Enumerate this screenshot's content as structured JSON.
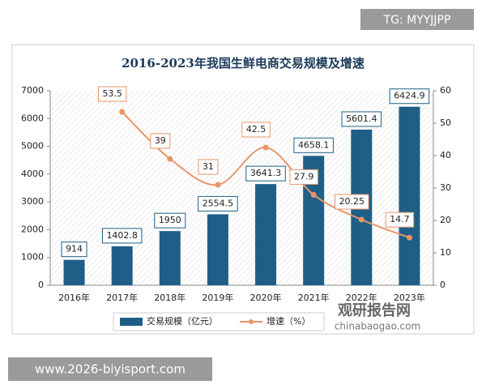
{
  "chart_data": {
    "type": "bar",
    "title": "2016-2023年我国生鲜电商交易规模及增速",
    "categories": [
      "2016年",
      "2017年",
      "2018年",
      "2019年",
      "2020年",
      "2021年",
      "2022年",
      "2023年"
    ],
    "series": [
      {
        "name": "交易规模（亿元）",
        "color": "#1f5f87",
        "type": "bar",
        "axis": "y",
        "values": [
          914,
          1402.8,
          1950,
          2554.5,
          3641.3,
          4658.1,
          5601.4,
          6424.9
        ]
      },
      {
        "name": "增速（%）",
        "color": "#e8956a",
        "type": "line",
        "axis": "y2",
        "values": [
          null,
          53.5,
          39,
          31,
          42.5,
          27.9,
          20.25,
          14.7
        ]
      }
    ],
    "ylim": [
      0,
      7000
    ],
    "yticks": [
      0,
      1000,
      2000,
      3000,
      4000,
      5000,
      6000,
      7000
    ],
    "y2lim": [
      0,
      60
    ],
    "y2ticks": [
      0,
      10,
      20,
      30,
      40,
      50,
      60
    ],
    "legend": "bottom"
  },
  "watermarks": {
    "top_right": "TG: MYYJJPP",
    "bottom_left": "www.2026-biyisport.com",
    "logo": "观研报告网",
    "logo_url": "chinabaogao.com"
  }
}
